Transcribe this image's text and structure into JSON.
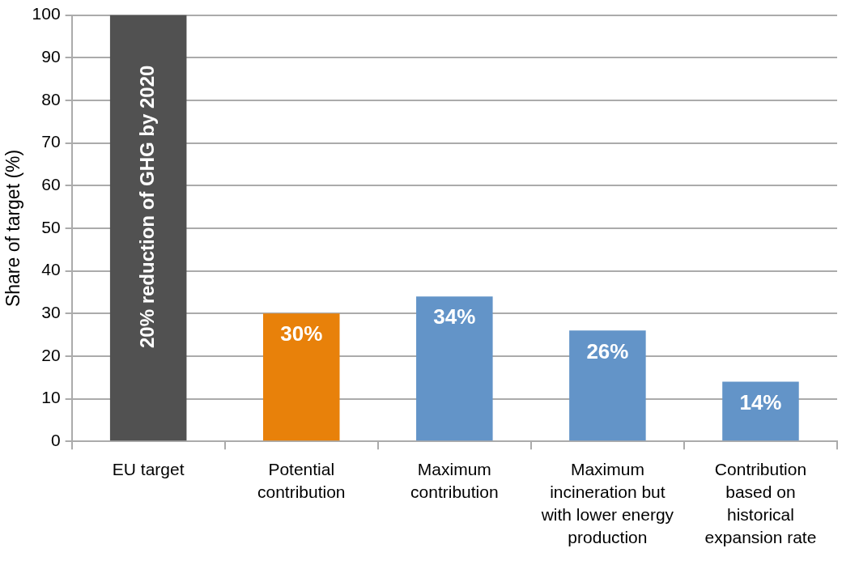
{
  "chart_data": {
    "type": "bar",
    "categories": [
      "EU target",
      "Potential contribution",
      "Maximum contribution",
      "Maximum incineration but with lower energy production",
      "Contribution based on historical expansion rate"
    ],
    "values": [
      100,
      30,
      34,
      26,
      14
    ],
    "colors": [
      "#515151",
      "#e8810a",
      "#6394c8",
      "#6394c8",
      "#6394c8"
    ],
    "value_labels": [
      null,
      "30%",
      "34%",
      "26%",
      "14%"
    ],
    "ylabel": "Share of target (%)",
    "ylim": [
      0,
      100
    ],
    "yticks": [
      0,
      10,
      20,
      30,
      40,
      50,
      60,
      70,
      80,
      90,
      100
    ],
    "grid": "y",
    "annotations": [
      {
        "text": "20% reduction of GHG by 2020",
        "x": "EU target",
        "y": 100
      }
    ]
  }
}
